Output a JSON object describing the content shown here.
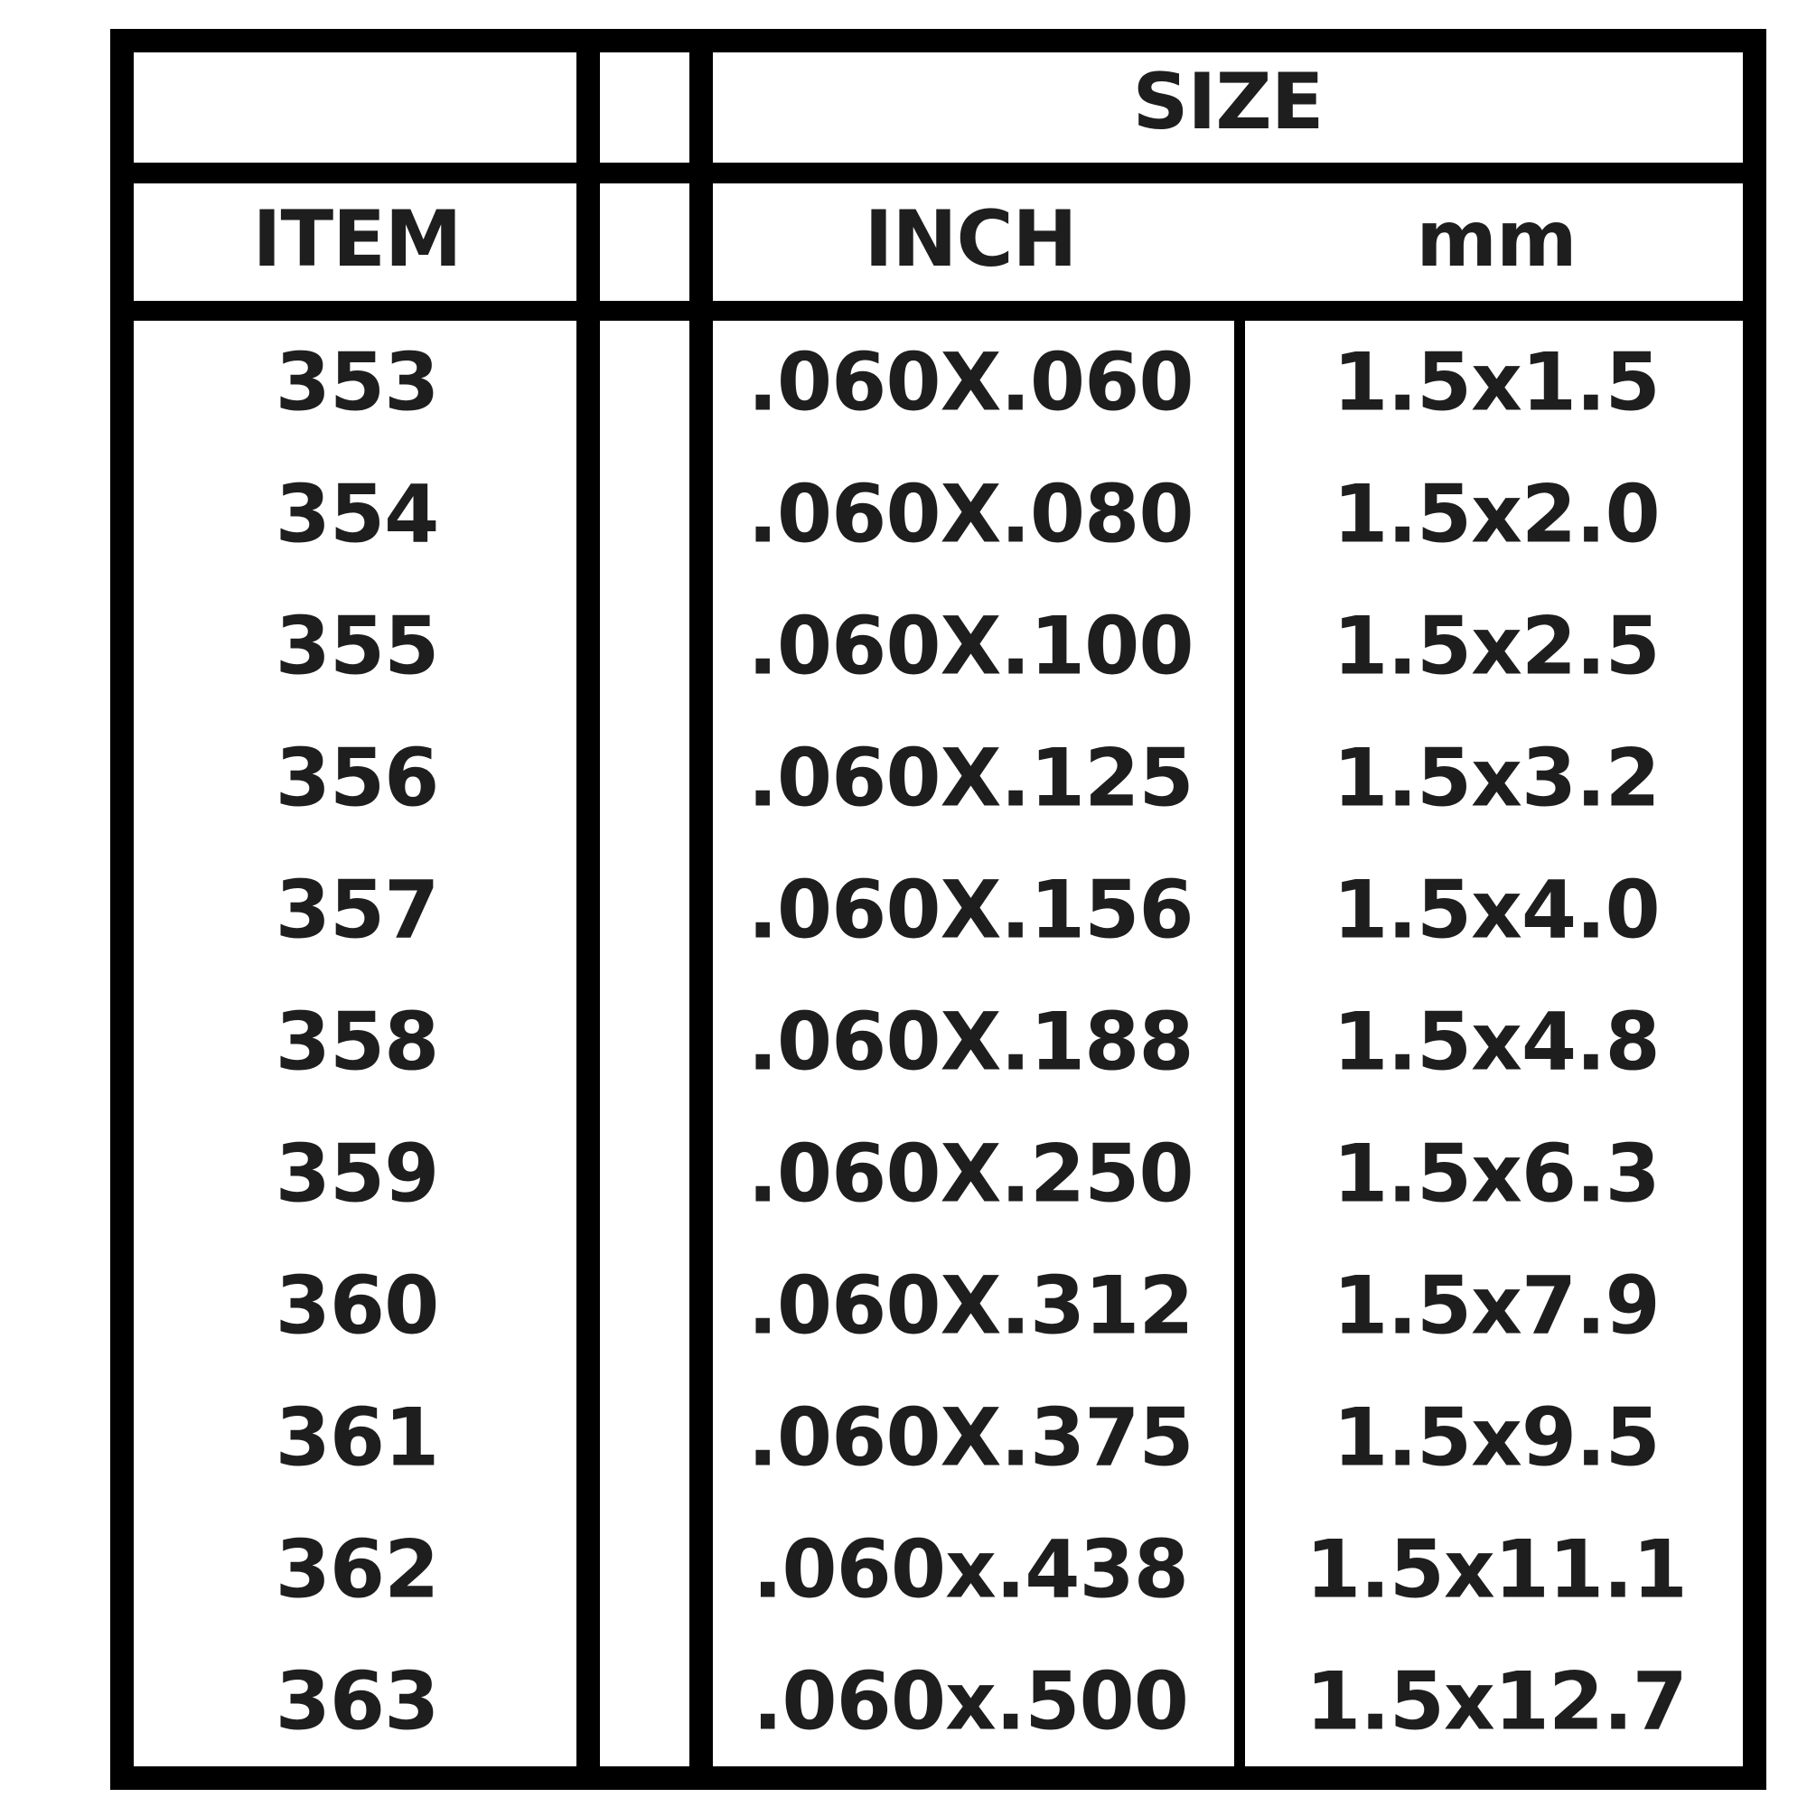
{
  "table": {
    "group_header": "SIZE",
    "columns": [
      "ITEM",
      "",
      "INCH",
      "mm"
    ],
    "rows": [
      {
        "item": "353",
        "inch": ".060X.060",
        "mm": "1.5x1.5"
      },
      {
        "item": "354",
        "inch": ".060X.080",
        "mm": "1.5x2.0"
      },
      {
        "item": "355",
        "inch": ".060X.100",
        "mm": "1.5x2.5"
      },
      {
        "item": "356",
        "inch": ".060X.125",
        "mm": "1.5x3.2"
      },
      {
        "item": "357",
        "inch": ".060X.156",
        "mm": "1.5x4.0"
      },
      {
        "item": "358",
        "inch": ".060X.188",
        "mm": "1.5x4.8"
      },
      {
        "item": "359",
        "inch": ".060X.250",
        "mm": "1.5x6.3"
      },
      {
        "item": "360",
        "inch": ".060X.312",
        "mm": "1.5x7.9"
      },
      {
        "item": "361",
        "inch": ".060X.375",
        "mm": "1.5x9.5"
      },
      {
        "item": "362",
        "inch": ".060x.438",
        "mm": "1.5x11.1"
      },
      {
        "item": "363",
        "inch": ".060x.500",
        "mm": "1.5x12.7"
      }
    ]
  }
}
